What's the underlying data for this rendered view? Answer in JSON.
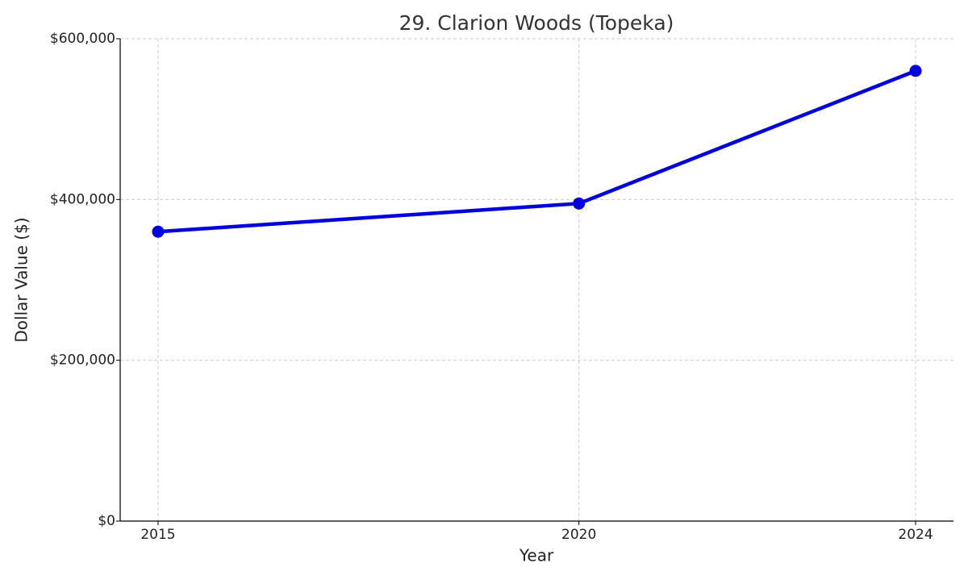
{
  "chart_data": {
    "type": "line",
    "title": "29. Clarion Woods (Topeka)",
    "x_label": "Year",
    "y_label": "Dollar Value ($)",
    "x": [
      2015,
      2020,
      2024
    ],
    "series": [
      {
        "name": "Clarion Woods",
        "color": "#0000dd",
        "values": [
          360000,
          395000,
          560000
        ]
      }
    ],
    "xlim": [
      2014.55,
      2024.45
    ],
    "xticks": [
      2015,
      2020,
      2024
    ],
    "ylim": [
      0,
      600000
    ],
    "yticks": [
      {
        "value": 0,
        "label": "$0"
      },
      {
        "value": 200000,
        "label": "$200,000"
      },
      {
        "value": 400000,
        "label": "$400,000"
      },
      {
        "value": 600000,
        "label": "$600,000"
      }
    ],
    "grid": true
  }
}
